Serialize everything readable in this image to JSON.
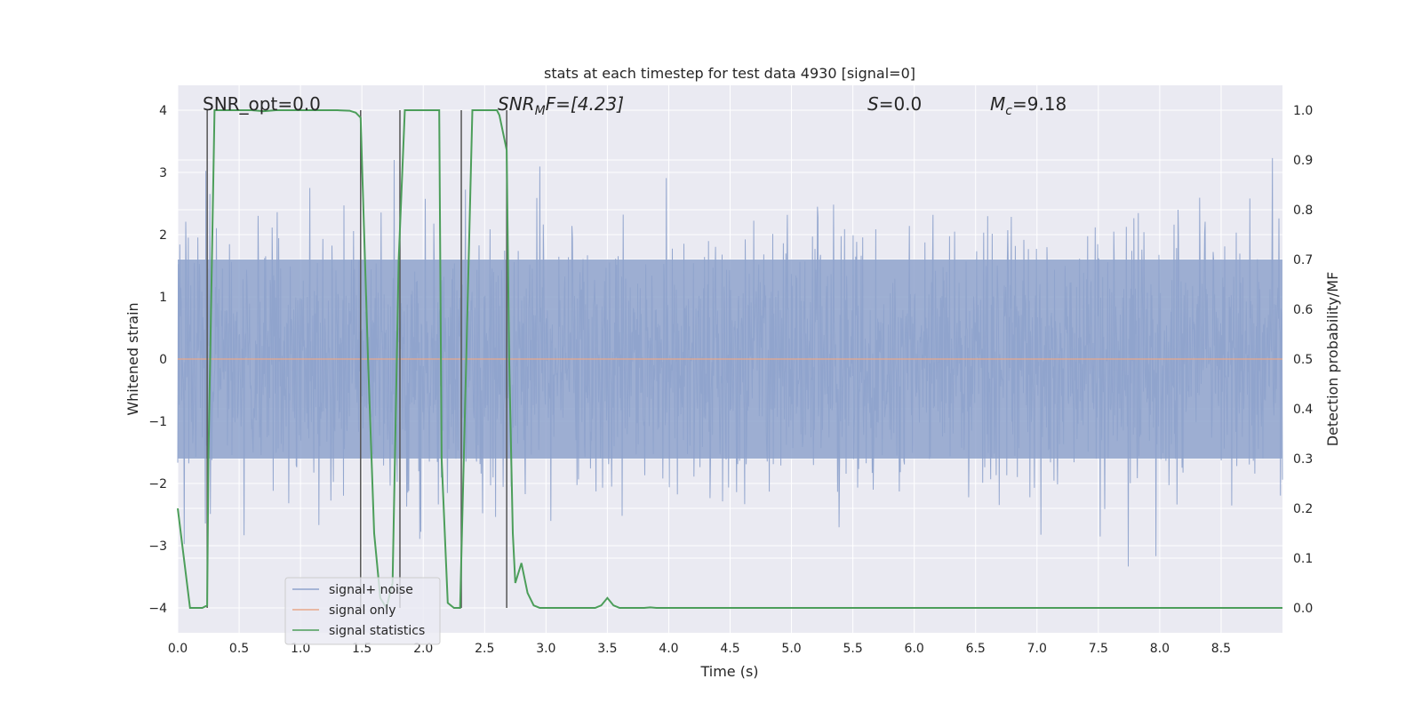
{
  "chart_data": {
    "type": "line",
    "title": "stats at each timestep for test data 4930 [signal=0]",
    "xlabel": "Time (s)",
    "ylabel_left": "Whitened strain",
    "ylabel_right": "Detection probability/MF",
    "xlim": [
      0.0,
      9.0
    ],
    "ylim_left": [
      -4.4,
      4.4
    ],
    "ylim_right": [
      -0.05,
      1.05
    ],
    "x_ticks": [
      "0.0",
      "0.5",
      "1.0",
      "1.5",
      "2.0",
      "2.5",
      "3.0",
      "3.5",
      "4.0",
      "4.5",
      "5.0",
      "5.5",
      "6.0",
      "6.5",
      "7.0",
      "7.5",
      "8.0",
      "8.5"
    ],
    "x_tick_values": [
      0.0,
      0.5,
      1.0,
      1.5,
      2.0,
      2.5,
      3.0,
      3.5,
      4.0,
      4.5,
      5.0,
      5.5,
      6.0,
      6.5,
      7.0,
      7.5,
      8.0,
      8.5
    ],
    "y_left_ticks": [
      "−4",
      "−3",
      "−2",
      "−1",
      "0",
      "1",
      "2",
      "3",
      "4"
    ],
    "y_left_tick_values": [
      -4,
      -3,
      -2,
      -1,
      0,
      1,
      2,
      3,
      4
    ],
    "y_right_ticks": [
      "0.0",
      "0.1",
      "0.2",
      "0.3",
      "0.4",
      "0.5",
      "0.6",
      "0.7",
      "0.8",
      "0.9",
      "1.0"
    ],
    "y_right_tick_values": [
      0.0,
      0.1,
      0.2,
      0.3,
      0.4,
      0.5,
      0.6,
      0.7,
      0.8,
      0.9,
      1.0
    ],
    "annotations": {
      "snr_opt": "SNR_opt=0.0",
      "snr_mf_main": "SNR",
      "snr_mf_sub": "M",
      "snr_mf_rest": "F=[4.23]",
      "s_main": "S",
      "s_rest": "=0.0",
      "mc_main": "M",
      "mc_sub": "c",
      "mc_rest": "=9.18"
    },
    "noise_envelope": {
      "description_free": true,
      "core_amplitude": 1.6,
      "peak_amplitude_max": 4.0,
      "peak_amplitude_min": -4.0
    },
    "vertical_markers_x": [
      0.24,
      1.49,
      1.81,
      2.31,
      2.68
    ],
    "series": [
      {
        "name": "signal+ noise",
        "color": "#8fa3cc"
      },
      {
        "name": "signal only",
        "color": "#e8a88a",
        "values": []
      },
      {
        "name": "signal statistics",
        "color": "#4c9e5a",
        "x": [
          0.0,
          0.05,
          0.1,
          0.15,
          0.2,
          0.24,
          0.25,
          0.3,
          0.35,
          0.4,
          0.5,
          0.6,
          0.7,
          0.8,
          0.9,
          1.0,
          1.1,
          1.2,
          1.3,
          1.4,
          1.45,
          1.49,
          1.5,
          1.55,
          1.6,
          1.65,
          1.7,
          1.75,
          1.8,
          1.85,
          1.9,
          2.0,
          2.1,
          2.13,
          2.15,
          2.2,
          2.25,
          2.3,
          2.35,
          2.4,
          2.45,
          2.5,
          2.55,
          2.6,
          2.62,
          2.68,
          2.7,
          2.73,
          2.75,
          2.8,
          2.85,
          2.9,
          2.95,
          3.0,
          3.1,
          3.2,
          3.3,
          3.4,
          3.45,
          3.5,
          3.55,
          3.6,
          3.7,
          3.8,
          3.85,
          3.9,
          4.0,
          4.5,
          5.0,
          5.5,
          6.0,
          6.5,
          7.0,
          7.5,
          8.0,
          8.5,
          9.0
        ],
        "values": [
          0.2,
          0.1,
          0.0,
          0.0,
          0.0,
          0.005,
          0.3,
          1.0,
          1.0,
          1.0,
          1.0,
          1.0,
          0.998,
          1.0,
          1.0,
          1.0,
          1.0,
          1.0,
          1.0,
          0.999,
          0.995,
          0.985,
          0.9,
          0.5,
          0.15,
          0.02,
          0.0,
          0.05,
          0.7,
          1.0,
          1.0,
          1.0,
          1.0,
          1.0,
          0.3,
          0.01,
          0.0,
          0.0,
          0.5,
          1.0,
          1.0,
          1.0,
          1.0,
          1.0,
          0.99,
          0.92,
          0.5,
          0.15,
          0.05,
          0.09,
          0.03,
          0.005,
          0.0,
          0.0,
          0.0,
          0.0,
          0.0,
          0.0,
          0.005,
          0.02,
          0.005,
          0.0,
          0.0,
          0.0,
          0.001,
          0.0,
          0.0,
          0.0,
          0.0,
          0.0,
          0.0,
          0.0,
          0.0,
          0.0,
          0.0,
          0.0,
          0.0
        ]
      }
    ],
    "legend": {
      "position": "lower-left",
      "entries": [
        "signal+ noise",
        "signal only",
        "signal statistics"
      ]
    }
  },
  "colors": {
    "plot_bg": "#eaeaf2",
    "grid": "#ffffff",
    "noise": "#8fa3cc",
    "signal_only": "#e8a88a",
    "stat": "#4c9e5a",
    "marker": "#555555"
  }
}
